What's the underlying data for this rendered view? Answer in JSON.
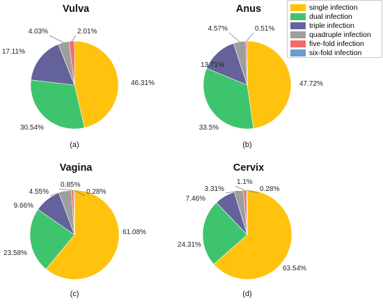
{
  "chart_data": [
    {
      "type": "pie",
      "title": "Vulva",
      "caption": "(a)",
      "categories": [
        "single infection",
        "dual infection",
        "triple infection",
        "quadruple infection",
        "five-fold infection"
      ],
      "values": [
        46.31,
        30.54,
        17.11,
        4.03,
        2.01
      ],
      "labels": [
        "46.31%",
        "30.54%",
        "17.11%",
        "4.03%",
        "2.01%"
      ]
    },
    {
      "type": "pie",
      "title": "Anus",
      "caption": "(b)",
      "categories": [
        "single infection",
        "dual infection",
        "triple infection",
        "quadruple infection",
        "five-fold infection"
      ],
      "values": [
        47.72,
        33.5,
        13.71,
        4.57,
        0.51
      ],
      "labels": [
        "47.72%",
        "33.5%",
        "13.71%",
        "4.57%",
        "0.51%"
      ]
    },
    {
      "type": "pie",
      "title": "Vagina",
      "caption": "(c)",
      "categories": [
        "single infection",
        "dual infection",
        "triple infection",
        "quadruple infection",
        "five-fold infection",
        "six-fold infection"
      ],
      "values": [
        61.08,
        23.58,
        9.66,
        4.55,
        0.85,
        0.28
      ],
      "labels": [
        "61.08%",
        "23.58%",
        "9.66%",
        "4.55%",
        "0.85%",
        "0.28%"
      ]
    },
    {
      "type": "pie",
      "title": "Cervix",
      "caption": "(d)",
      "categories": [
        "single infection",
        "dual infection",
        "triple infection",
        "quadruple infection",
        "five-fold infection",
        "six-fold infection"
      ],
      "values": [
        63.54,
        24.31,
        7.46,
        3.31,
        1.1,
        0.28
      ],
      "labels": [
        "63.54%",
        "24.31%",
        "7.46%",
        "3.31%",
        "1.1%",
        "0.28%"
      ]
    }
  ],
  "legend": {
    "placement": "top-right",
    "items": [
      {
        "label": "single infection",
        "color": "#FFC20E"
      },
      {
        "label": "dual infection",
        "color": "#3EC46D"
      },
      {
        "label": "triple infection",
        "color": "#64629A"
      },
      {
        "label": "quadruple infection",
        "color": "#9E9E9E"
      },
      {
        "label": "five-fold infection",
        "color": "#F26B6B"
      },
      {
        "label": "six-fold infection",
        "color": "#6C9BD2"
      }
    ]
  }
}
